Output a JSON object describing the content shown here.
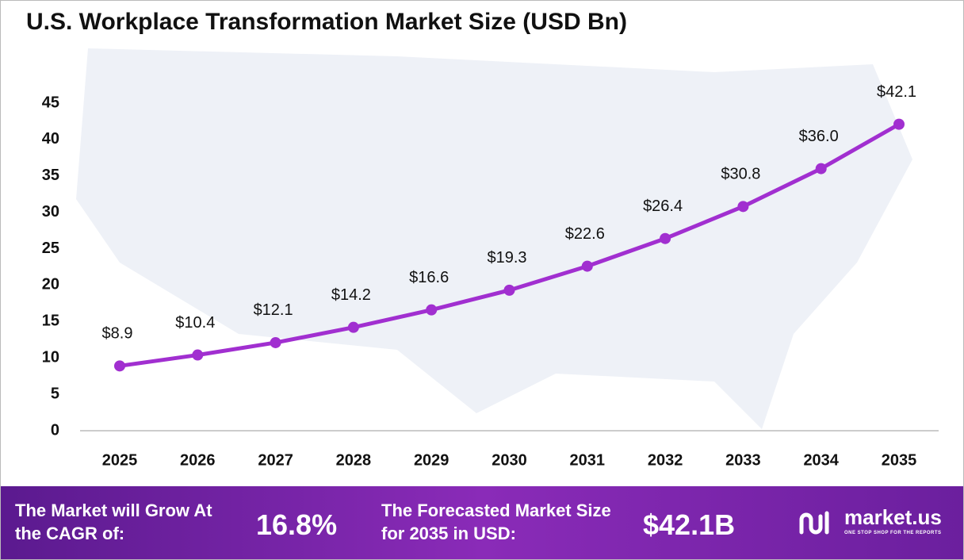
{
  "chart_data": {
    "type": "line",
    "title": "U.S. Workplace Transformation Market Size (USD Bn)",
    "categories": [
      "2025",
      "2026",
      "2027",
      "2028",
      "2029",
      "2030",
      "2031",
      "2032",
      "2033",
      "2034",
      "2035"
    ],
    "values": [
      8.9,
      10.4,
      12.1,
      14.2,
      16.6,
      19.3,
      22.6,
      26.4,
      30.8,
      36.0,
      42.1
    ],
    "value_labels": [
      "$8.9",
      "$10.4",
      "$12.1",
      "$14.2",
      "$16.6",
      "$19.3",
      "$22.6",
      "$26.4",
      "$30.8",
      "$36.0",
      "$42.1"
    ],
    "color": "#a12fd0",
    "ylim": [
      0,
      45
    ],
    "yticks": [
      0,
      5,
      10,
      15,
      20,
      25,
      30,
      35,
      40,
      45
    ],
    "grid": false
  },
  "footer": {
    "cagr_label": "The Market will Grow At the CAGR of:",
    "cagr_value": "16.8%",
    "forecast_label": "The Forecasted Market Size for 2035 in USD:",
    "forecast_value": "$42.1B",
    "brand": "market.us",
    "tagline": "ONE STOP SHOP FOR THE REPORTS"
  }
}
